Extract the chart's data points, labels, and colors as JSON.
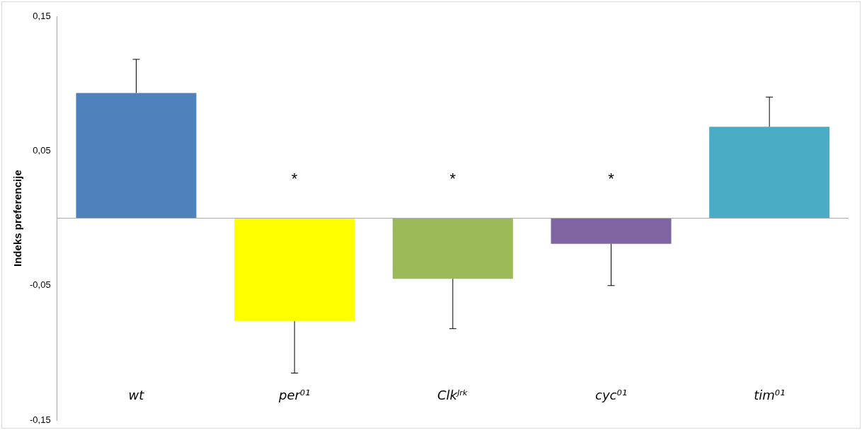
{
  "chart_data": {
    "type": "bar",
    "ylabel": "Indeks preferencije",
    "categories": [
      "wt",
      "per⁰¹",
      "Clkᴶʳᵏ",
      "cyc⁰¹",
      "tim⁰¹"
    ],
    "values": [
      0.093,
      -0.0765,
      -0.045,
      -0.019,
      0.068
    ],
    "colors": [
      "#4f81bd",
      "#ffff00",
      "#9bbb59",
      "#8064a2",
      "#4bacc6"
    ],
    "errors": [
      [
        0.093,
        0.118
      ],
      [
        -0.115,
        -0.0765
      ],
      [
        -0.082,
        -0.045
      ],
      [
        -0.05,
        -0.019
      ],
      [
        0.068,
        0.09
      ]
    ],
    "ylim": [
      -0.15,
      0.15
    ],
    "yticks": [
      {
        "value": -0.15,
        "label": "-0,15"
      },
      {
        "value": -0.05,
        "label": "-0,05"
      },
      {
        "value": 0.05,
        "label": "0,05"
      },
      {
        "value": 0.15,
        "label": "0,15"
      }
    ],
    "annotations": [
      "*",
      "*",
      "*"
    ],
    "grid": false,
    "legend": false
  }
}
